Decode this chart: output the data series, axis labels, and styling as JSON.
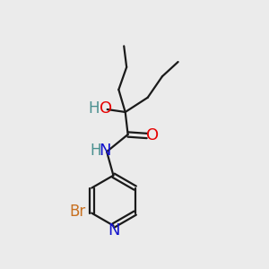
{
  "background_color": "#ebebeb",
  "bond_color": "#1a1a1a",
  "atom_colors": {
    "O": "#e60000",
    "N": "#1414cc",
    "Br": "#c87020",
    "HO_H": "#4a9090",
    "HO_O": "#e60000",
    "NH_H": "#4a9090",
    "NH_N": "#1414cc"
  },
  "font_size": 12
}
